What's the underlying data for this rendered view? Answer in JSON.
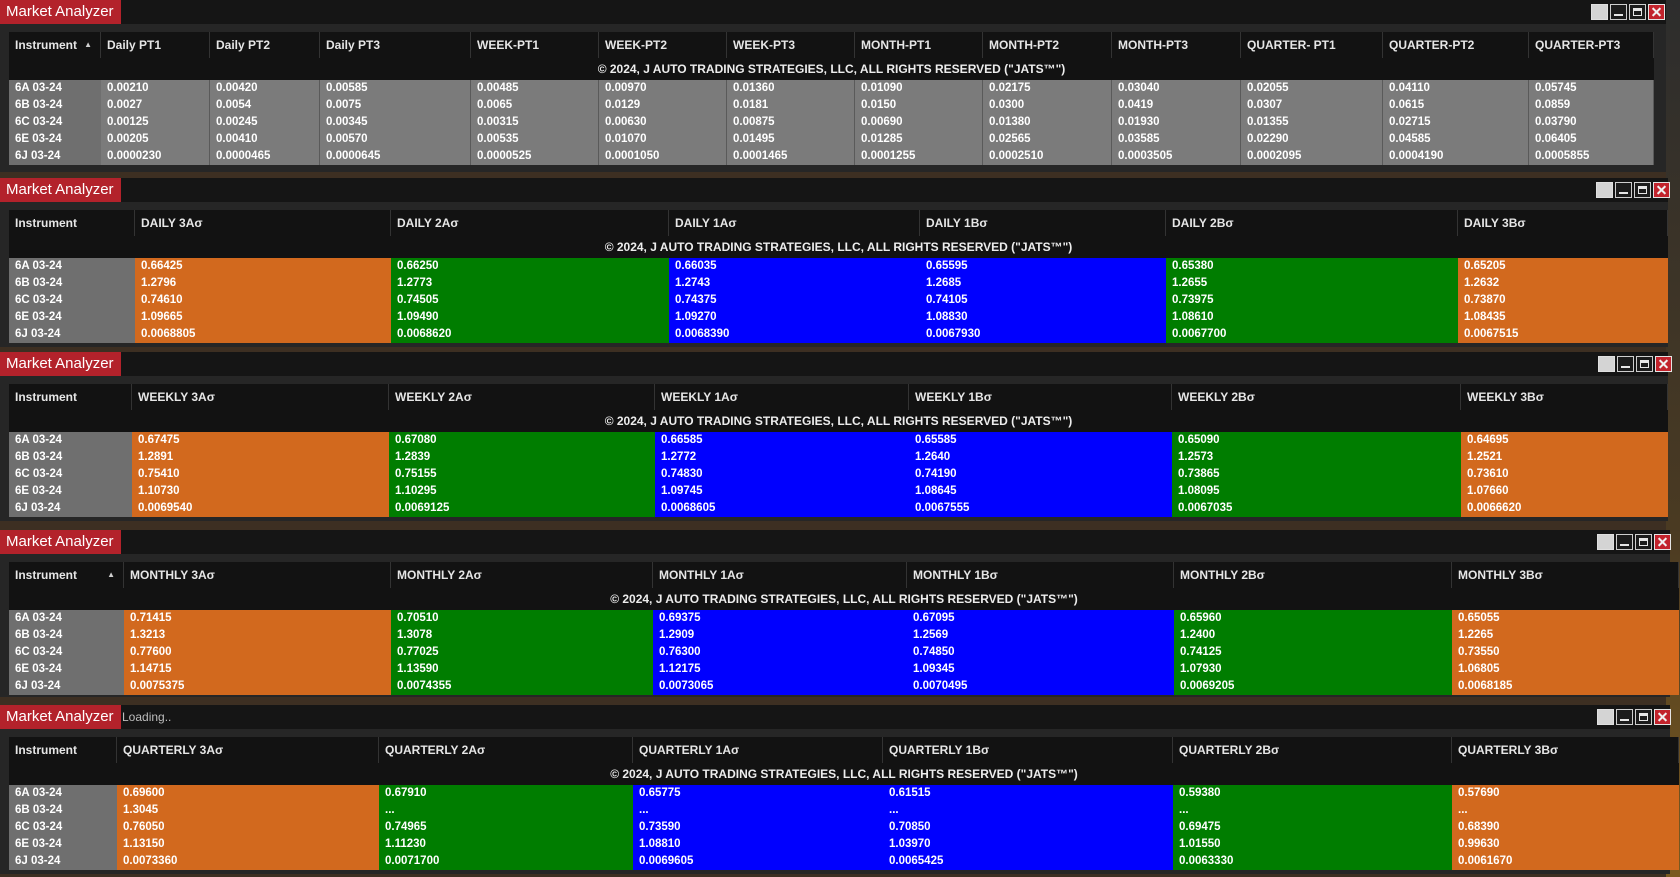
{
  "app": {
    "title": "Market Analyzer",
    "copyright": "© 2024, J AUTO TRADING STRATEGIES, LLC, ALL RIGHTS RESERVED (\"JATS™\")",
    "instrument_header": "Instrument",
    "colors": {
      "orange": "#d2691e",
      "green": "#007d00",
      "blue": "#0000ff",
      "title_red": "#b3222b",
      "gray_cell": "#7b7b7b"
    }
  },
  "instruments": [
    "6A 03-24",
    "6B 03-24",
    "6C 03-24",
    "6E 03-24",
    "6J 03-24"
  ],
  "panels": [
    {
      "id": "pivots",
      "status": "",
      "columns": [
        "Daily PT1",
        "Daily PT2",
        "Daily PT3",
        "WEEK-PT1",
        "WEEK-PT2",
        "WEEK-PT3",
        "MONTH-PT1",
        "MONTH-PT2",
        "MONTH-PT3",
        "QUARTER- PT1",
        "QUARTER-PT2",
        "QUARTER-PT3"
      ],
      "rows": [
        [
          "0.00210",
          "0.00420",
          "0.00585",
          "0.00485",
          "0.00970",
          "0.01360",
          "0.01090",
          "0.02175",
          "0.03040",
          "0.02055",
          "0.04110",
          "0.05745"
        ],
        [
          "0.0027",
          "0.0054",
          "0.0075",
          "0.0065",
          "0.0129",
          "0.0181",
          "0.0150",
          "0.0300",
          "0.0419",
          "0.0307",
          "0.0615",
          "0.0859"
        ],
        [
          "0.00125",
          "0.00245",
          "0.00345",
          "0.00315",
          "0.00630",
          "0.00875",
          "0.00690",
          "0.01380",
          "0.01930",
          "0.01355",
          "0.02715",
          "0.03790"
        ],
        [
          "0.00205",
          "0.00410",
          "0.00570",
          "0.00535",
          "0.01070",
          "0.01495",
          "0.01285",
          "0.02565",
          "0.03585",
          "0.02290",
          "0.04585",
          "0.06405"
        ],
        [
          "0.0000230",
          "0.0000465",
          "0.0000645",
          "0.0000525",
          "0.0001050",
          "0.0001465",
          "0.0001255",
          "0.0002510",
          "0.0003505",
          "0.0002095",
          "0.0004190",
          "0.0005855"
        ]
      ]
    },
    {
      "id": "daily",
      "status": "",
      "columns": [
        "DAILY 3Aσ",
        "DAILY 2Aσ",
        "DAILY 1Aσ",
        "DAILY 1Bσ",
        "DAILY 2Bσ",
        "DAILY 3Bσ"
      ],
      "rows": [
        [
          "0.66425",
          "0.66250",
          "0.66035",
          "0.65595",
          "0.65380",
          "0.65205"
        ],
        [
          "1.2796",
          "1.2773",
          "1.2743",
          "1.2685",
          "1.2655",
          "1.2632"
        ],
        [
          "0.74610",
          "0.74505",
          "0.74375",
          "0.74105",
          "0.73975",
          "0.73870"
        ],
        [
          "1.09665",
          "1.09490",
          "1.09270",
          "1.08830",
          "1.08610",
          "1.08435"
        ],
        [
          "0.0068805",
          "0.0068620",
          "0.0068390",
          "0.0067930",
          "0.0067700",
          "0.0067515"
        ]
      ]
    },
    {
      "id": "weekly",
      "status": "",
      "columns": [
        "WEEKLY 3Aσ",
        "WEEKLY 2Aσ",
        "WEEKLY 1Aσ",
        "WEEKLY 1Bσ",
        "WEEKLY 2Bσ",
        "WEEKLY 3Bσ"
      ],
      "rows": [
        [
          "0.67475",
          "0.67080",
          "0.66585",
          "0.65585",
          "0.65090",
          "0.64695"
        ],
        [
          "1.2891",
          "1.2839",
          "1.2772",
          "1.2640",
          "1.2573",
          "1.2521"
        ],
        [
          "0.75410",
          "0.75155",
          "0.74830",
          "0.74190",
          "0.73865",
          "0.73610"
        ],
        [
          "1.10730",
          "1.10295",
          "1.09745",
          "1.08645",
          "1.08095",
          "1.07660"
        ],
        [
          "0.0069540",
          "0.0069125",
          "0.0068605",
          "0.0067555",
          "0.0067035",
          "0.0066620"
        ]
      ]
    },
    {
      "id": "monthly",
      "status": "",
      "columns": [
        "MONTHLY 3Aσ",
        "MONTHLY 2Aσ",
        "MONTHLY 1Aσ",
        "MONTHLY 1Bσ",
        "MONTHLY 2Bσ",
        "MONTHLY 3Bσ"
      ],
      "rows": [
        [
          "0.71415",
          "0.70510",
          "0.69375",
          "0.67095",
          "0.65960",
          "0.65055"
        ],
        [
          "1.3213",
          "1.3078",
          "1.2909",
          "1.2569",
          "1.2400",
          "1.2265"
        ],
        [
          "0.77600",
          "0.77025",
          "0.76300",
          "0.74850",
          "0.74125",
          "0.73550"
        ],
        [
          "1.14715",
          "1.13590",
          "1.12175",
          "1.09345",
          "1.07930",
          "1.06805"
        ],
        [
          "0.0075375",
          "0.0074355",
          "0.0073065",
          "0.0070495",
          "0.0069205",
          "0.0068185"
        ]
      ]
    },
    {
      "id": "quarterly",
      "status": "Loading..",
      "columns": [
        "QUARTERLY 3Aσ",
        "QUARTERLY 2Aσ",
        "QUARTERLY 1Aσ",
        "QUARTERLY 1Bσ",
        "QUARTERLY 2Bσ",
        "QUARTERLY 3Bσ"
      ],
      "rows": [
        [
          "0.69600",
          "0.67910",
          "0.65775",
          "0.61515",
          "0.59380",
          "0.57690"
        ],
        [
          "1.3045",
          "...",
          "...",
          "...",
          "...",
          "..."
        ],
        [
          "0.76050",
          "0.74965",
          "0.73590",
          "0.70850",
          "0.69475",
          "0.68390"
        ],
        [
          "1.13150",
          "1.11230",
          "1.08810",
          "1.03970",
          "1.01550",
          "0.99630"
        ],
        [
          "0.0073360",
          "0.0071700",
          "0.0069605",
          "0.0065425",
          "0.0063330",
          "0.0061670"
        ]
      ]
    }
  ]
}
